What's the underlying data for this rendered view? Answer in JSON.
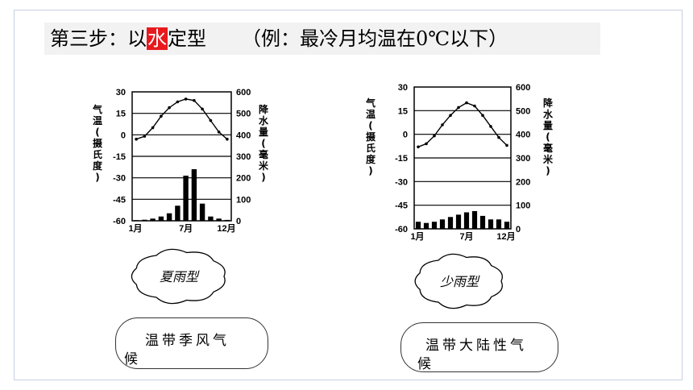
{
  "title": {
    "prefix": "第三步：以",
    "highlight": "水",
    "suffix": "定型",
    "example": "（例：最冷月均温在0℃以下）"
  },
  "chart_data": [
    {
      "type": "bar+line",
      "temp_axis_label": "气温(摄氏度)",
      "precip_axis_label": "降水量(毫米)",
      "temp_ticks": [
        "30",
        "15",
        "0",
        "-15",
        "-30",
        "-45",
        "-60"
      ],
      "precip_ticks": [
        "600",
        "500",
        "400",
        "300",
        "200",
        "100",
        "0"
      ],
      "x_ticks": [
        "1月",
        "7月",
        "12月"
      ],
      "temperature": [
        -3,
        -1,
        5,
        13,
        19,
        23,
        25,
        24,
        18,
        10,
        2,
        -3
      ],
      "precipitation": [
        3,
        5,
        10,
        20,
        35,
        70,
        210,
        240,
        80,
        20,
        10,
        4
      ],
      "type_label": "夏雨型",
      "climate_line1": "温带季风气",
      "climate_line2": "候"
    },
    {
      "type": "bar+line",
      "temp_axis_label": "气温(摄氏度)",
      "precip_axis_label": "降水量(毫米)",
      "temp_ticks": [
        "30",
        "15",
        "0",
        "-15",
        "-30",
        "-45",
        "-60"
      ],
      "precip_ticks": [
        "600",
        "500",
        "400",
        "300",
        "200",
        "100",
        "0"
      ],
      "x_ticks": [
        "1月",
        "7月",
        "12月"
      ],
      "temperature": [
        -8,
        -6,
        -1,
        6,
        12,
        17,
        20,
        18,
        12,
        5,
        -2,
        -7
      ],
      "precipitation": [
        30,
        25,
        30,
        40,
        50,
        60,
        70,
        75,
        55,
        40,
        40,
        30
      ],
      "type_label": "少雨型",
      "climate_line1": "温带大陆性气",
      "climate_line2": "候"
    }
  ]
}
